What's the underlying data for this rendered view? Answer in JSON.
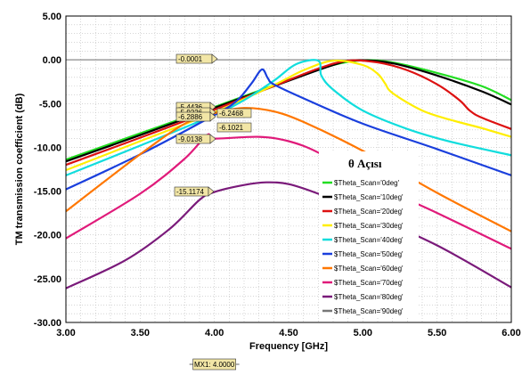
{
  "chart_data": {
    "type": "line",
    "xlabel": "Frequency [GHz]",
    "ylabel": "TM transmission coefficient (dB)",
    "xlim": [
      3.0,
      6.0
    ],
    "ylim": [
      -30.0,
      5.0
    ],
    "x_ticks": [
      "3.00",
      "3.50",
      "4.00",
      "4.50",
      "5.00",
      "5.50",
      "6.00"
    ],
    "y_ticks": [
      "5.00",
      "0.00",
      "-5.00",
      "-10.00",
      "-15.00",
      "-20.00",
      "-25.00",
      "-30.00"
    ],
    "grid": "dotted",
    "reference_line": {
      "y": 0,
      "label": "-0.0001"
    },
    "marker": {
      "x": 4.0,
      "label": "MX1: 4.0000"
    },
    "marker_values": [
      "-5.4436",
      "-5.9226",
      "-6.2468",
      "-6.2886",
      "-6.1021",
      "-9.0138",
      "-15.1174"
    ],
    "legend": {
      "title": "θ Açısı",
      "placement": "right-middle"
    },
    "series": [
      {
        "name": "$Theta_Scan='0deg'",
        "color": "#22dd22",
        "x": [
          3.0,
          3.5,
          4.0,
          4.5,
          4.8,
          5.0,
          5.2,
          5.5,
          5.8,
          6.0
        ],
        "y": [
          -11.4,
          -8.4,
          -5.4,
          -2.3,
          -0.6,
          -0.05,
          -0.3,
          -1.5,
          -3.0,
          -4.6
        ]
      },
      {
        "name": "$Theta_Scan='10deg'",
        "color": "#000000",
        "x": [
          3.0,
          3.5,
          4.0,
          4.5,
          4.8,
          4.95,
          5.2,
          5.5,
          5.8,
          6.0
        ],
        "y": [
          -11.6,
          -8.6,
          -5.5,
          -2.4,
          -0.6,
          -0.05,
          -0.4,
          -1.8,
          -3.6,
          -5.1
        ]
      },
      {
        "name": "$Theta_Scan='20deg'",
        "color": "#dd1111",
        "x": [
          3.0,
          3.5,
          4.0,
          4.4,
          4.7,
          4.9,
          5.1,
          5.3,
          5.5,
          5.65,
          5.72,
          5.8,
          6.0
        ],
        "y": [
          -12.0,
          -8.9,
          -5.7,
          -3.0,
          -1.0,
          -0.1,
          -0.3,
          -1.2,
          -2.8,
          -4.6,
          -5.8,
          -6.6,
          -7.9
        ]
      },
      {
        "name": "$Theta_Scan='30deg'",
        "color": "#ffee00",
        "x": [
          3.0,
          3.5,
          4.0,
          4.4,
          4.6,
          4.8,
          5.0,
          5.1,
          5.15,
          5.2,
          5.4,
          5.6,
          5.8,
          6.0
        ],
        "y": [
          -12.6,
          -9.3,
          -6.0,
          -2.9,
          -1.2,
          -0.1,
          -0.6,
          -1.6,
          -2.7,
          -3.8,
          -5.8,
          -6.9,
          -7.8,
          -8.8
        ]
      },
      {
        "name": "$Theta_Scan='40deg'",
        "color": "#11dddd",
        "x": [
          3.0,
          3.5,
          4.0,
          4.2,
          4.4,
          4.55,
          4.7,
          4.72,
          4.8,
          5.0,
          5.3,
          5.6,
          6.0
        ],
        "y": [
          -13.2,
          -9.8,
          -6.3,
          -4.6,
          -2.4,
          -0.5,
          -0.1,
          -1.8,
          -3.4,
          -5.8,
          -7.9,
          -9.4,
          -10.9
        ]
      },
      {
        "name": "$Theta_Scan='50deg'",
        "color": "#1a3fdd",
        "x": [
          3.0,
          3.5,
          4.0,
          4.15,
          4.25,
          4.32,
          4.36,
          4.4,
          4.6,
          5.0,
          5.5,
          6.0
        ],
        "y": [
          -14.8,
          -10.8,
          -6.3,
          -4.7,
          -2.7,
          -1.1,
          -2.1,
          -2.8,
          -4.4,
          -7.3,
          -10.2,
          -13.2
        ]
      },
      {
        "name": "$Theta_Scan='60deg'",
        "color": "#ff7700",
        "x": [
          3.0,
          3.5,
          3.8,
          4.0,
          4.2,
          4.4,
          4.6,
          5.0,
          5.5,
          6.0
        ],
        "y": [
          -17.3,
          -10.8,
          -7.3,
          -6.1,
          -5.5,
          -5.9,
          -7.1,
          -10.4,
          -15.2,
          -19.6
        ]
      },
      {
        "name": "$Theta_Scan='70deg'",
        "color": "#e01a7a",
        "x": [
          3.0,
          3.5,
          3.8,
          3.95,
          4.0,
          4.3,
          4.5,
          4.7,
          5.0,
          5.5,
          6.0
        ],
        "y": [
          -20.4,
          -15.3,
          -11.3,
          -8.6,
          -9.0,
          -8.8,
          -9.3,
          -10.6,
          -13.6,
          -17.5,
          -21.6
        ]
      },
      {
        "name": "$Theta_Scan='80deg'",
        "color": "#7a1a7a",
        "x": [
          3.0,
          3.4,
          3.7,
          3.9,
          4.0,
          4.2,
          4.35,
          4.5,
          4.7,
          5.0,
          5.5,
          6.0
        ],
        "y": [
          -26.1,
          -22.9,
          -19.3,
          -16.0,
          -15.1,
          -14.3,
          -14.0,
          -14.2,
          -15.3,
          -17.4,
          -21.2,
          -26.0
        ]
      },
      {
        "name": "$Theta_Scan='90deg'",
        "color": "#777777",
        "x": [],
        "y": []
      }
    ]
  }
}
